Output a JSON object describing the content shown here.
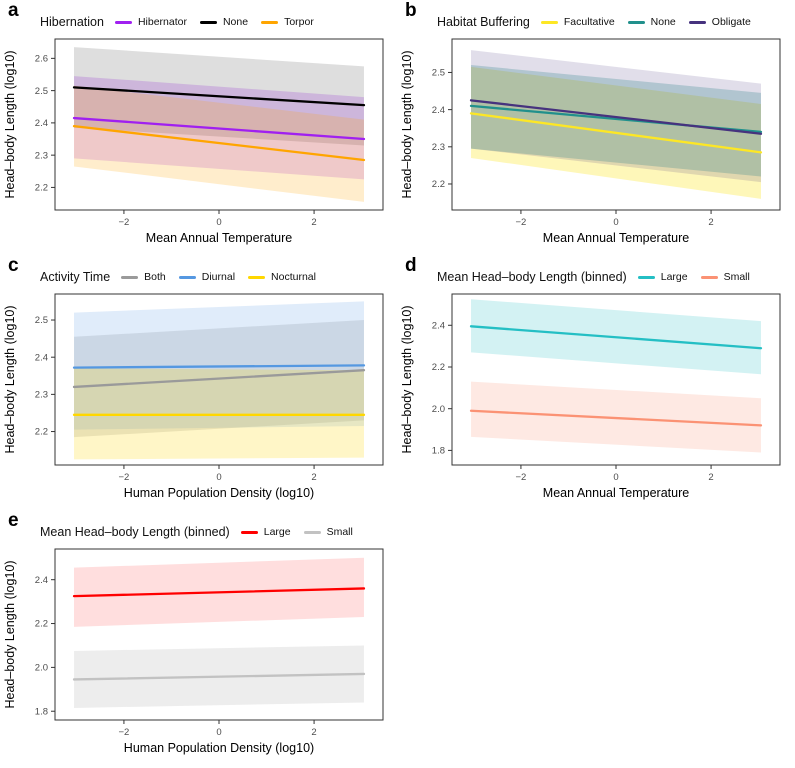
{
  "figure": {
    "background": "#ffffff",
    "panel_letters": [
      "a",
      "b",
      "c",
      "d",
      "e"
    ]
  },
  "chart_data": [
    {
      "type": "line",
      "panel_label": "a",
      "legend_title": "Hibernation",
      "xlabel": "Mean Annual Temperature",
      "ylabel": "Head–body Length (log10)",
      "x": [
        -3.05,
        3.05
      ],
      "xlim": [
        -3.45,
        3.45
      ],
      "xticks": [
        -2,
        0,
        2
      ],
      "ylim": [
        2.13,
        2.66
      ],
      "yticks": [
        2.2,
        2.3,
        2.4,
        2.5,
        2.6
      ],
      "grid": false,
      "legend_position": "top",
      "series": [
        {
          "name": "Hibernator",
          "color": "#A020F0",
          "ribbon_opacity": 0.2,
          "values": [
            2.415,
            2.35
          ],
          "ribbon_top": [
            2.545,
            2.48
          ],
          "ribbon_bottom": [
            2.29,
            2.225
          ]
        },
        {
          "name": "None",
          "color": "#000000",
          "ribbon_opacity": 0.13,
          "values": [
            2.51,
            2.455
          ],
          "ribbon_top": [
            2.635,
            2.575
          ],
          "ribbon_bottom": [
            2.385,
            2.33
          ]
        },
        {
          "name": "Torpor",
          "color": "#FFA500",
          "ribbon_opacity": 0.2,
          "values": [
            2.39,
            2.285
          ],
          "ribbon_top": [
            2.515,
            2.41
          ],
          "ribbon_bottom": [
            2.265,
            2.155
          ]
        }
      ]
    },
    {
      "type": "line",
      "panel_label": "b",
      "legend_title": "Habitat Buffering",
      "xlabel": "Mean Annual Temperature",
      "ylabel": "Head–body Length (log10)",
      "x": [
        -3.05,
        3.05
      ],
      "xlim": [
        -3.45,
        3.45
      ],
      "xticks": [
        -2,
        0,
        2
      ],
      "ylim": [
        2.13,
        2.59
      ],
      "yticks": [
        2.2,
        2.3,
        2.4,
        2.5
      ],
      "grid": false,
      "legend_position": "top",
      "series": [
        {
          "name": "Facultative",
          "color": "#FDE725",
          "ribbon_opacity": 0.32,
          "values": [
            2.39,
            2.285
          ],
          "ribbon_top": [
            2.515,
            2.415
          ],
          "ribbon_bottom": [
            2.27,
            2.16
          ]
        },
        {
          "name": "None",
          "color": "#21908C",
          "ribbon_opacity": 0.26,
          "values": [
            2.41,
            2.34
          ],
          "ribbon_top": [
            2.52,
            2.445
          ],
          "ribbon_bottom": [
            2.295,
            2.22
          ]
        },
        {
          "name": "Obligate",
          "color": "#46327E",
          "ribbon_opacity": 0.16,
          "values": [
            2.425,
            2.335
          ],
          "ribbon_top": [
            2.56,
            2.47
          ],
          "ribbon_bottom": [
            2.295,
            2.205
          ]
        }
      ]
    },
    {
      "type": "line",
      "panel_label": "c",
      "legend_title": "Activity Time",
      "xlabel": "Human Population Density (log10)",
      "ylabel": "Head–body Length (log10)",
      "x": [
        -3.05,
        3.05
      ],
      "xlim": [
        -3.45,
        3.45
      ],
      "xticks": [
        -2,
        0,
        2
      ],
      "ylim": [
        2.11,
        2.57
      ],
      "yticks": [
        2.2,
        2.3,
        2.4,
        2.5
      ],
      "grid": false,
      "legend_position": "top",
      "series": [
        {
          "name": "Both",
          "color": "#9A9A9A",
          "ribbon_opacity": 0.25,
          "values": [
            2.32,
            2.365
          ],
          "ribbon_top": [
            2.455,
            2.5
          ],
          "ribbon_bottom": [
            2.185,
            2.23
          ]
        },
        {
          "name": "Diurnal",
          "color": "#5598E1",
          "ribbon_opacity": 0.18,
          "values": [
            2.372,
            2.378
          ],
          "ribbon_top": [
            2.52,
            2.55
          ],
          "ribbon_bottom": [
            2.205,
            2.215
          ]
        },
        {
          "name": "Nocturnal",
          "color": "#FFD700",
          "ribbon_opacity": 0.22,
          "values": [
            2.245,
            2.245
          ],
          "ribbon_top": [
            2.37,
            2.365
          ],
          "ribbon_bottom": [
            2.125,
            2.13
          ]
        }
      ]
    },
    {
      "type": "line",
      "panel_label": "d",
      "legend_title": "Mean Head–body Length (binned)",
      "xlabel": "Mean Annual Temperature",
      "ylabel": "Head–body Length (log10)",
      "x": [
        -3.05,
        3.05
      ],
      "xlim": [
        -3.45,
        3.45
      ],
      "xticks": [
        -2,
        0,
        2
      ],
      "ylim": [
        1.73,
        2.55
      ],
      "yticks": [
        1.8,
        2.0,
        2.2,
        2.4
      ],
      "grid": false,
      "legend_position": "top",
      "series": [
        {
          "name": "Large",
          "color": "#24BFC4",
          "ribbon_opacity": 0.2,
          "values": [
            2.395,
            2.29
          ],
          "ribbon_top": [
            2.525,
            2.42
          ],
          "ribbon_bottom": [
            2.27,
            2.165
          ]
        },
        {
          "name": "Small",
          "color": "#FB9274",
          "ribbon_opacity": 0.2,
          "values": [
            1.99,
            1.92
          ],
          "ribbon_top": [
            2.13,
            2.05
          ],
          "ribbon_bottom": [
            1.865,
            1.79
          ]
        }
      ]
    },
    {
      "type": "line",
      "panel_label": "e",
      "legend_title": "Mean Head–body Length (binned)",
      "xlabel": "Human Population Density (log10)",
      "ylabel": "Head–body Length (log10)",
      "x": [
        -3.05,
        3.05
      ],
      "xlim": [
        -3.45,
        3.45
      ],
      "xticks": [
        -2,
        0,
        2
      ],
      "ylim": [
        1.76,
        2.54
      ],
      "yticks": [
        1.8,
        2.0,
        2.2,
        2.4
      ],
      "grid": false,
      "legend_position": "top",
      "series": [
        {
          "name": "Large",
          "color": "#FF0000",
          "ribbon_opacity": 0.13,
          "values": [
            2.325,
            2.36
          ],
          "ribbon_top": [
            2.455,
            2.5
          ],
          "ribbon_bottom": [
            2.185,
            2.23
          ]
        },
        {
          "name": "Small",
          "color": "#C2C2C2",
          "ribbon_opacity": 0.3,
          "values": [
            1.945,
            1.97
          ],
          "ribbon_top": [
            2.075,
            2.1
          ],
          "ribbon_bottom": [
            1.815,
            1.84
          ]
        }
      ]
    }
  ]
}
